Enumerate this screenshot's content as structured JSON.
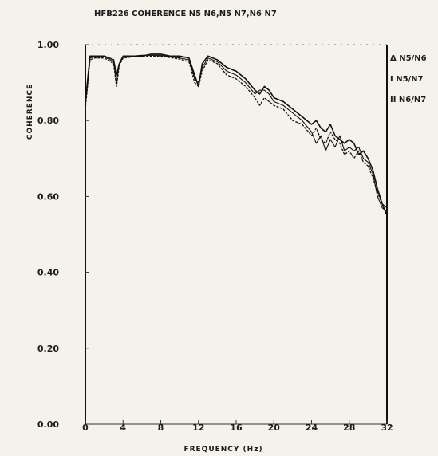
{
  "chart_data": {
    "type": "line",
    "title": "HFB226 COHERENCE N5 N6,N5 N7,N6 N7",
    "xlabel": "FREQUENCY (Hz)",
    "ylabel": "COHERENCE",
    "xlim": [
      0,
      32
    ],
    "ylim": [
      0,
      1
    ],
    "x_ticks": [
      "0",
      "4",
      "8",
      "12",
      "16",
      "20",
      "24",
      "28",
      "32"
    ],
    "y_ticks": [
      "0.00",
      "0.20",
      "0.40",
      "0.60",
      "0.80",
      "1.00"
    ],
    "grid": false,
    "legend_position": "right",
    "x": [
      0,
      0.5,
      1,
      2,
      3,
      3.3,
      3.6,
      4,
      5,
      6,
      7,
      8,
      9,
      10,
      11,
      11.6,
      12,
      12.4,
      13,
      14,
      15,
      16,
      17,
      18,
      18.5,
      19,
      19.5,
      20,
      21,
      22,
      23,
      24,
      24.5,
      25,
      25.5,
      26,
      26.5,
      27,
      27.5,
      28,
      28.5,
      29,
      29.5,
      30,
      30.5,
      31,
      31.5,
      32
    ],
    "series": [
      {
        "name": "Δ N5/N6",
        "values": [
          0.85,
          0.97,
          0.97,
          0.97,
          0.96,
          0.92,
          0.95,
          0.97,
          0.97,
          0.97,
          0.975,
          0.975,
          0.97,
          0.97,
          0.965,
          0.92,
          0.89,
          0.95,
          0.97,
          0.96,
          0.94,
          0.93,
          0.91,
          0.88,
          0.87,
          0.89,
          0.88,
          0.86,
          0.85,
          0.83,
          0.81,
          0.79,
          0.8,
          0.78,
          0.77,
          0.79,
          0.76,
          0.75,
          0.74,
          0.75,
          0.74,
          0.71,
          0.72,
          0.7,
          0.67,
          0.62,
          0.58,
          0.55
        ]
      },
      {
        "name": "I N5/N7",
        "values": [
          0.84,
          0.965,
          0.968,
          0.968,
          0.955,
          0.9,
          0.948,
          0.968,
          0.97,
          0.972,
          0.972,
          0.972,
          0.968,
          0.965,
          0.96,
          0.91,
          0.9,
          0.94,
          0.965,
          0.955,
          0.93,
          0.92,
          0.9,
          0.87,
          0.88,
          0.88,
          0.87,
          0.85,
          0.84,
          0.82,
          0.8,
          0.77,
          0.74,
          0.76,
          0.72,
          0.75,
          0.73,
          0.76,
          0.72,
          0.73,
          0.72,
          0.73,
          0.7,
          0.69,
          0.66,
          0.6,
          0.57,
          0.56
        ]
      },
      {
        "name": "II N6/N7",
        "values": [
          0.83,
          0.96,
          0.965,
          0.965,
          0.95,
          0.89,
          0.945,
          0.965,
          0.968,
          0.97,
          0.97,
          0.97,
          0.966,
          0.962,
          0.955,
          0.9,
          0.89,
          0.93,
          0.96,
          0.95,
          0.92,
          0.91,
          0.89,
          0.86,
          0.84,
          0.86,
          0.85,
          0.84,
          0.83,
          0.8,
          0.79,
          0.76,
          0.78,
          0.75,
          0.74,
          0.77,
          0.75,
          0.74,
          0.71,
          0.72,
          0.7,
          0.72,
          0.69,
          0.68,
          0.65,
          0.61,
          0.58,
          0.57
        ]
      }
    ]
  }
}
